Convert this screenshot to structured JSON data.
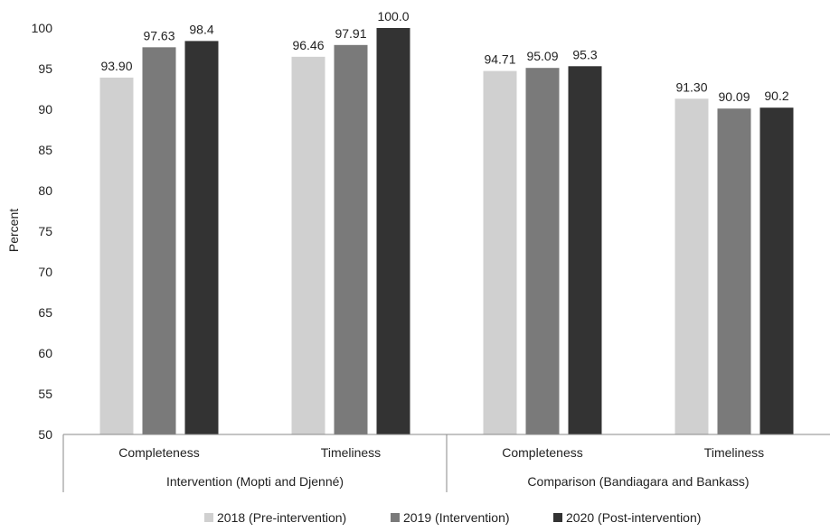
{
  "chart_data": {
    "type": "bar",
    "ylabel": "Percent",
    "ylim": [
      50,
      100
    ],
    "yticks": [
      50,
      55,
      60,
      65,
      70,
      75,
      80,
      85,
      90,
      95,
      100
    ],
    "groups": [
      {
        "label": "Intervention (Mopti and Djenné)",
        "categories": [
          "Completeness",
          "Timeliness"
        ]
      },
      {
        "label": "Comparison (Bandiagara and Bankass)",
        "categories": [
          "Completeness",
          "Timeliness"
        ]
      }
    ],
    "series": [
      {
        "name": "2018 (Pre-intervention)",
        "color": "#d0d0d0",
        "values": [
          93.9,
          96.46,
          94.71,
          91.3
        ],
        "labels": [
          "93.90",
          "96.46",
          "94.71",
          "91.30"
        ]
      },
      {
        "name": "2019 (Intervention)",
        "color": "#7a7a7a",
        "values": [
          97.63,
          97.91,
          95.09,
          90.09
        ],
        "labels": [
          "97.63",
          "97.91",
          "95.09",
          "90.09"
        ]
      },
      {
        "name": "2020 (Post-intervention)",
        "color": "#333333",
        "values": [
          98.4,
          100.0,
          95.3,
          90.2
        ],
        "labels": [
          "98.4",
          "100.0",
          "95.3",
          "90.2"
        ]
      }
    ],
    "legend_position": "bottom",
    "grid": false
  }
}
